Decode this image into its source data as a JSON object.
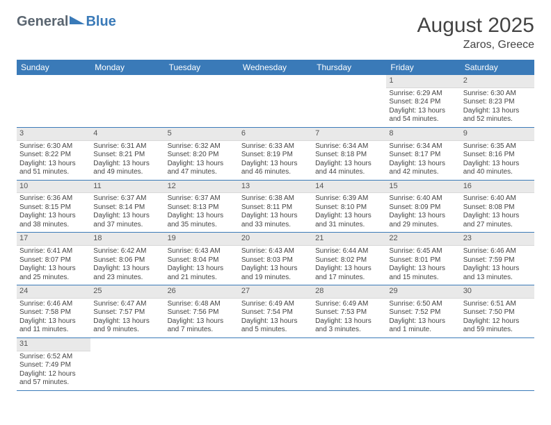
{
  "brand": {
    "part1": "General",
    "part2": "Blue"
  },
  "title": {
    "month": "August 2025",
    "location": "Zaros, Greece"
  },
  "colors": {
    "header_bg": "#3a7ab8",
    "header_fg": "#ffffff",
    "daynum_bg": "#e9e9e9",
    "row_border": "#3a7ab8",
    "text": "#444444"
  },
  "weekdays": [
    "Sunday",
    "Monday",
    "Tuesday",
    "Wednesday",
    "Thursday",
    "Friday",
    "Saturday"
  ],
  "weeks": [
    [
      {
        "empty": true
      },
      {
        "empty": true
      },
      {
        "empty": true
      },
      {
        "empty": true
      },
      {
        "empty": true
      },
      {
        "day": "1",
        "sunrise": "Sunrise: 6:29 AM",
        "sunset": "Sunset: 8:24 PM",
        "daylight": "Daylight: 13 hours and 54 minutes."
      },
      {
        "day": "2",
        "sunrise": "Sunrise: 6:30 AM",
        "sunset": "Sunset: 8:23 PM",
        "daylight": "Daylight: 13 hours and 52 minutes."
      }
    ],
    [
      {
        "day": "3",
        "sunrise": "Sunrise: 6:30 AM",
        "sunset": "Sunset: 8:22 PM",
        "daylight": "Daylight: 13 hours and 51 minutes."
      },
      {
        "day": "4",
        "sunrise": "Sunrise: 6:31 AM",
        "sunset": "Sunset: 8:21 PM",
        "daylight": "Daylight: 13 hours and 49 minutes."
      },
      {
        "day": "5",
        "sunrise": "Sunrise: 6:32 AM",
        "sunset": "Sunset: 8:20 PM",
        "daylight": "Daylight: 13 hours and 47 minutes."
      },
      {
        "day": "6",
        "sunrise": "Sunrise: 6:33 AM",
        "sunset": "Sunset: 8:19 PM",
        "daylight": "Daylight: 13 hours and 46 minutes."
      },
      {
        "day": "7",
        "sunrise": "Sunrise: 6:34 AM",
        "sunset": "Sunset: 8:18 PM",
        "daylight": "Daylight: 13 hours and 44 minutes."
      },
      {
        "day": "8",
        "sunrise": "Sunrise: 6:34 AM",
        "sunset": "Sunset: 8:17 PM",
        "daylight": "Daylight: 13 hours and 42 minutes."
      },
      {
        "day": "9",
        "sunrise": "Sunrise: 6:35 AM",
        "sunset": "Sunset: 8:16 PM",
        "daylight": "Daylight: 13 hours and 40 minutes."
      }
    ],
    [
      {
        "day": "10",
        "sunrise": "Sunrise: 6:36 AM",
        "sunset": "Sunset: 8:15 PM",
        "daylight": "Daylight: 13 hours and 38 minutes."
      },
      {
        "day": "11",
        "sunrise": "Sunrise: 6:37 AM",
        "sunset": "Sunset: 8:14 PM",
        "daylight": "Daylight: 13 hours and 37 minutes."
      },
      {
        "day": "12",
        "sunrise": "Sunrise: 6:37 AM",
        "sunset": "Sunset: 8:13 PM",
        "daylight": "Daylight: 13 hours and 35 minutes."
      },
      {
        "day": "13",
        "sunrise": "Sunrise: 6:38 AM",
        "sunset": "Sunset: 8:11 PM",
        "daylight": "Daylight: 13 hours and 33 minutes."
      },
      {
        "day": "14",
        "sunrise": "Sunrise: 6:39 AM",
        "sunset": "Sunset: 8:10 PM",
        "daylight": "Daylight: 13 hours and 31 minutes."
      },
      {
        "day": "15",
        "sunrise": "Sunrise: 6:40 AM",
        "sunset": "Sunset: 8:09 PM",
        "daylight": "Daylight: 13 hours and 29 minutes."
      },
      {
        "day": "16",
        "sunrise": "Sunrise: 6:40 AM",
        "sunset": "Sunset: 8:08 PM",
        "daylight": "Daylight: 13 hours and 27 minutes."
      }
    ],
    [
      {
        "day": "17",
        "sunrise": "Sunrise: 6:41 AM",
        "sunset": "Sunset: 8:07 PM",
        "daylight": "Daylight: 13 hours and 25 minutes."
      },
      {
        "day": "18",
        "sunrise": "Sunrise: 6:42 AM",
        "sunset": "Sunset: 8:06 PM",
        "daylight": "Daylight: 13 hours and 23 minutes."
      },
      {
        "day": "19",
        "sunrise": "Sunrise: 6:43 AM",
        "sunset": "Sunset: 8:04 PM",
        "daylight": "Daylight: 13 hours and 21 minutes."
      },
      {
        "day": "20",
        "sunrise": "Sunrise: 6:43 AM",
        "sunset": "Sunset: 8:03 PM",
        "daylight": "Daylight: 13 hours and 19 minutes."
      },
      {
        "day": "21",
        "sunrise": "Sunrise: 6:44 AM",
        "sunset": "Sunset: 8:02 PM",
        "daylight": "Daylight: 13 hours and 17 minutes."
      },
      {
        "day": "22",
        "sunrise": "Sunrise: 6:45 AM",
        "sunset": "Sunset: 8:01 PM",
        "daylight": "Daylight: 13 hours and 15 minutes."
      },
      {
        "day": "23",
        "sunrise": "Sunrise: 6:46 AM",
        "sunset": "Sunset: 7:59 PM",
        "daylight": "Daylight: 13 hours and 13 minutes."
      }
    ],
    [
      {
        "day": "24",
        "sunrise": "Sunrise: 6:46 AM",
        "sunset": "Sunset: 7:58 PM",
        "daylight": "Daylight: 13 hours and 11 minutes."
      },
      {
        "day": "25",
        "sunrise": "Sunrise: 6:47 AM",
        "sunset": "Sunset: 7:57 PM",
        "daylight": "Daylight: 13 hours and 9 minutes."
      },
      {
        "day": "26",
        "sunrise": "Sunrise: 6:48 AM",
        "sunset": "Sunset: 7:56 PM",
        "daylight": "Daylight: 13 hours and 7 minutes."
      },
      {
        "day": "27",
        "sunrise": "Sunrise: 6:49 AM",
        "sunset": "Sunset: 7:54 PM",
        "daylight": "Daylight: 13 hours and 5 minutes."
      },
      {
        "day": "28",
        "sunrise": "Sunrise: 6:49 AM",
        "sunset": "Sunset: 7:53 PM",
        "daylight": "Daylight: 13 hours and 3 minutes."
      },
      {
        "day": "29",
        "sunrise": "Sunrise: 6:50 AM",
        "sunset": "Sunset: 7:52 PM",
        "daylight": "Daylight: 13 hours and 1 minute."
      },
      {
        "day": "30",
        "sunrise": "Sunrise: 6:51 AM",
        "sunset": "Sunset: 7:50 PM",
        "daylight": "Daylight: 12 hours and 59 minutes."
      }
    ],
    [
      {
        "day": "31",
        "sunrise": "Sunrise: 6:52 AM",
        "sunset": "Sunset: 7:49 PM",
        "daylight": "Daylight: 12 hours and 57 minutes."
      },
      {
        "empty": true
      },
      {
        "empty": true
      },
      {
        "empty": true
      },
      {
        "empty": true
      },
      {
        "empty": true
      },
      {
        "empty": true
      }
    ]
  ]
}
